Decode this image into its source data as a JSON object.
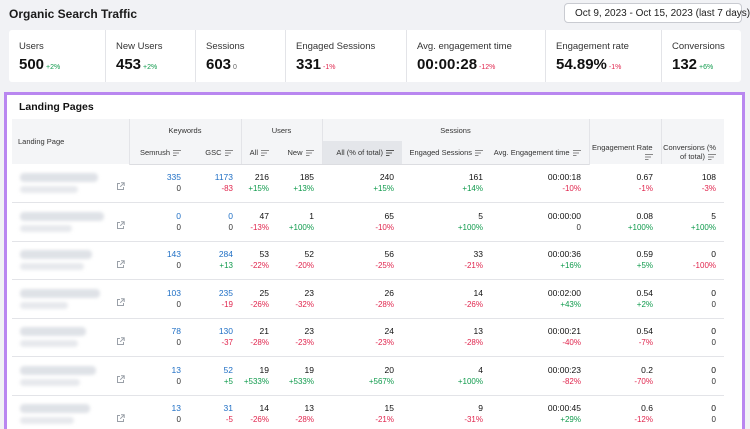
{
  "header": {
    "title": "Organic Search Traffic",
    "date_range": "Oct 9, 2023 - Oct 15, 2023 (last 7 days)"
  },
  "metrics": [
    {
      "label": "Users",
      "value": "500",
      "delta": "+2%",
      "dir": "up"
    },
    {
      "label": "New Users",
      "value": "453",
      "delta": "+2%",
      "dir": "up"
    },
    {
      "label": "Sessions",
      "value": "603",
      "delta": "0",
      "dir": "flat"
    },
    {
      "label": "Engaged Sessions",
      "value": "331",
      "delta": "-1%",
      "dir": "down"
    },
    {
      "label": "Avg. engagement time",
      "value": "00:00:28",
      "delta": "-12%",
      "dir": "down"
    },
    {
      "label": "Engagement rate",
      "value": "54.89%",
      "delta": "-1%",
      "dir": "down"
    },
    {
      "label": "Conversions",
      "value": "132",
      "delta": "+6%",
      "dir": "up"
    }
  ],
  "landing_pages": {
    "title": "Landing Pages",
    "groups": {
      "landing_page": "Landing Page",
      "keywords": "Keywords",
      "users": "Users",
      "sessions": "Sessions",
      "engagement_rate": "Engagement Rate",
      "conversions": "Conversions (% of total)"
    },
    "subheaders": {
      "semrush": "Semrush",
      "gsc": "GSC",
      "users_all": "All",
      "users_new": "New",
      "sessions_all": "All (% of total)",
      "engaged_sessions": "Engaged Sessions",
      "avg_engagement_time": "Avg. Engagement time"
    },
    "rows": [
      {
        "semrush": [
          "335",
          "0"
        ],
        "gsc": [
          "1173",
          "-83"
        ],
        "users_all": [
          "216",
          "+15%"
        ],
        "users_new": [
          "185",
          "+13%"
        ],
        "sessions_all": [
          "240",
          "+15%"
        ],
        "engaged": [
          "161",
          "+14%"
        ],
        "avg_time": [
          "00:00:18",
          "-10%"
        ],
        "eng_rate": [
          "0.67",
          "-1%"
        ],
        "conversions": [
          "108",
          "-3%"
        ]
      },
      {
        "semrush": [
          "0",
          "0"
        ],
        "gsc": [
          "0",
          "0"
        ],
        "users_all": [
          "47",
          "-13%"
        ],
        "users_new": [
          "1",
          "+100%"
        ],
        "sessions_all": [
          "65",
          "-10%"
        ],
        "engaged": [
          "5",
          "+100%"
        ],
        "avg_time": [
          "00:00:00",
          "0"
        ],
        "eng_rate": [
          "0.08",
          "+100%"
        ],
        "conversions": [
          "5",
          "+100%"
        ]
      },
      {
        "semrush": [
          "143",
          "0"
        ],
        "gsc": [
          "284",
          "+13"
        ],
        "users_all": [
          "53",
          "-22%"
        ],
        "users_new": [
          "52",
          "-20%"
        ],
        "sessions_all": [
          "56",
          "-25%"
        ],
        "engaged": [
          "33",
          "-21%"
        ],
        "avg_time": [
          "00:00:36",
          "+16%"
        ],
        "eng_rate": [
          "0.59",
          "+5%"
        ],
        "conversions": [
          "0",
          "-100%"
        ]
      },
      {
        "semrush": [
          "103",
          "0"
        ],
        "gsc": [
          "235",
          "-19"
        ],
        "users_all": [
          "25",
          "-26%"
        ],
        "users_new": [
          "23",
          "-32%"
        ],
        "sessions_all": [
          "26",
          "-28%"
        ],
        "engaged": [
          "14",
          "-26%"
        ],
        "avg_time": [
          "00:02:00",
          "+43%"
        ],
        "eng_rate": [
          "0.54",
          "+2%"
        ],
        "conversions": [
          "0",
          "0"
        ]
      },
      {
        "semrush": [
          "78",
          "0"
        ],
        "gsc": [
          "130",
          "-37"
        ],
        "users_all": [
          "21",
          "-28%"
        ],
        "users_new": [
          "23",
          "-23%"
        ],
        "sessions_all": [
          "24",
          "-23%"
        ],
        "engaged": [
          "13",
          "-28%"
        ],
        "avg_time": [
          "00:00:21",
          "-40%"
        ],
        "eng_rate": [
          "0.54",
          "-7%"
        ],
        "conversions": [
          "0",
          "0"
        ]
      },
      {
        "semrush": [
          "13",
          "0"
        ],
        "gsc": [
          "52",
          "+5"
        ],
        "users_all": [
          "19",
          "+533%"
        ],
        "users_new": [
          "19",
          "+533%"
        ],
        "sessions_all": [
          "20",
          "+567%"
        ],
        "engaged": [
          "4",
          "+100%"
        ],
        "avg_time": [
          "00:00:23",
          "-82%"
        ],
        "eng_rate": [
          "0.2",
          "-70%"
        ],
        "conversions": [
          "0",
          "0"
        ]
      },
      {
        "semrush": [
          "13",
          "0"
        ],
        "gsc": [
          "31",
          "-5"
        ],
        "users_all": [
          "14",
          "-26%"
        ],
        "users_new": [
          "13",
          "-28%"
        ],
        "sessions_all": [
          "15",
          "-21%"
        ],
        "engaged": [
          "9",
          "-31%"
        ],
        "avg_time": [
          "00:00:45",
          "+29%"
        ],
        "eng_rate": [
          "0.6",
          "-12%"
        ],
        "conversions": [
          "0",
          "0"
        ]
      }
    ]
  },
  "colors": {
    "positive": "#0f9a4c",
    "negative": "#e0254d",
    "link": "#1f6fc5",
    "highlight_border": "#b987f0"
  }
}
